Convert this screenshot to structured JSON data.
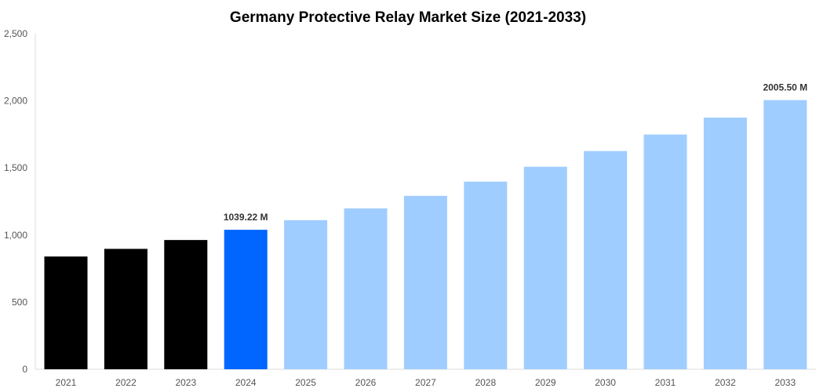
{
  "chart_data": {
    "type": "bar",
    "title": "Germany Protective Relay Market Size (2021-2033)",
    "xlabel": "",
    "ylabel": "",
    "categories": [
      "2021",
      "2022",
      "2023",
      "2024",
      "2025",
      "2026",
      "2027",
      "2028",
      "2029",
      "2030",
      "2031",
      "2032",
      "2033"
    ],
    "values": [
      840,
      897,
      963,
      1039.22,
      1111,
      1199,
      1292,
      1398,
      1509,
      1626,
      1749,
      1875,
      2005.5
    ],
    "bar_colors": [
      "#000000",
      "#000000",
      "#000000",
      "#0066ff",
      "#a0cdff",
      "#a0cdff",
      "#a0cdff",
      "#a0cdff",
      "#a0cdff",
      "#a0cdff",
      "#a0cdff",
      "#a0cdff",
      "#a0cdff"
    ],
    "data_labels": {
      "3": "1039.22 M",
      "12": "2005.50 M"
    },
    "ylim": [
      0,
      2500
    ],
    "yticks": [
      0,
      500,
      1000,
      1500,
      2000,
      2500
    ],
    "ytick_labels": [
      "0",
      "500",
      "1,000",
      "1,500",
      "2,000",
      "2,500"
    ],
    "grid": false,
    "legend": "none"
  }
}
